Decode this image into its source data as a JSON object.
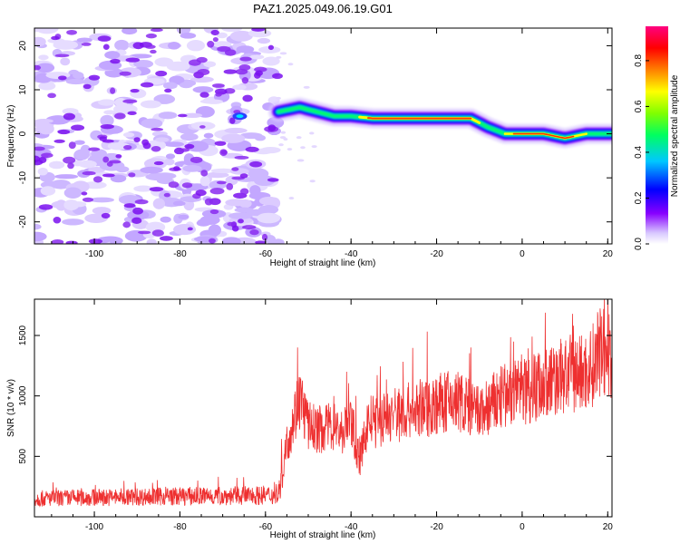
{
  "chart_data": [
    {
      "type": "heatmap",
      "title": "PAZ1.2025.049.06.19.G01",
      "xlabel": "Height of straight line (km)",
      "ylabel": "Frequency (Hz)",
      "xlim": [
        -114,
        21
      ],
      "ylim": [
        -25,
        24
      ],
      "xticks": [
        "-100",
        "-80",
        "-60",
        "-40",
        "-20",
        "0",
        "20"
      ],
      "yticks": [
        "-20",
        "-10",
        "0",
        "10",
        "20"
      ],
      "colorbar": {
        "label": "Normalized spectral amplitude",
        "range": [
          0,
          0.95
        ],
        "ticks": [
          "0.0",
          "0.2",
          "0.4",
          "0.6",
          "0.8"
        ],
        "colors": [
          "#ffffff",
          "#d8c8ff",
          "#8800ff",
          "#0000ff",
          "#00c8ff",
          "#00ff60",
          "#80ff00",
          "#ffff00",
          "#ff8000",
          "#ff0000",
          "#ff0080"
        ]
      },
      "noise_region_x": [
        -114,
        -57
      ],
      "signal_trace": {
        "x": [
          -57,
          -52,
          -48,
          -44,
          -40,
          -35,
          -30,
          -25,
          -20,
          -12,
          -8,
          -4,
          0,
          5,
          10,
          15,
          21
        ],
        "y": [
          5,
          6,
          5,
          4,
          4,
          3.5,
          3.5,
          3.5,
          3.5,
          3.5,
          1.5,
          0,
          0,
          0,
          -1,
          0,
          0
        ]
      }
    },
    {
      "type": "line",
      "title": "",
      "xlabel": "Height of straight line (km)",
      "ylabel": "SNR (10 * v/v)",
      "xlim": [
        -114,
        21
      ],
      "ylim": [
        0,
        1800
      ],
      "xticks": [
        "-100",
        "-80",
        "-60",
        "-40",
        "-20",
        "0",
        "20"
      ],
      "yticks": [
        "500",
        "1000",
        "1500"
      ],
      "series_color": "#ee3030",
      "envelope": {
        "x": [
          -114,
          -100,
          -80,
          -65,
          -57,
          -55,
          -52,
          -50,
          -47,
          -44,
          -42,
          -40,
          -38,
          -36,
          -34,
          -30,
          -25,
          -20,
          -15,
          -12,
          -10,
          -5,
          0,
          5,
          10,
          15,
          19,
          20,
          21
        ],
        "y": [
          150,
          160,
          170,
          175,
          180,
          600,
          1000,
          750,
          720,
          750,
          700,
          800,
          450,
          800,
          780,
          850,
          880,
          930,
          960,
          900,
          850,
          980,
          1050,
          1100,
          1170,
          1200,
          1350,
          1300,
          1350
        ]
      },
      "peaks": [
        {
          "x": -52.5,
          "y": 1400
        },
        {
          "x": -44,
          "y": 1000
        },
        {
          "x": -41,
          "y": 1200
        },
        {
          "x": -12,
          "y": 1400
        },
        {
          "x": -2,
          "y": 1450
        },
        {
          "x": 12,
          "y": 1580
        },
        {
          "x": 19.2,
          "y": 1850
        }
      ]
    }
  ]
}
